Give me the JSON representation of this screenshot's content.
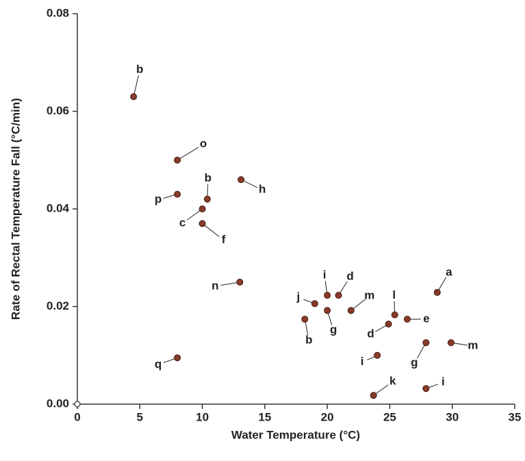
{
  "chart_data": {
    "type": "scatter",
    "xlabel": "Water Temperature (°C)",
    "ylabel": "Rate of Rectal Temperature Fall (°C/min)",
    "series": [
      {
        "color": "#8b3a2a",
        "x": [
          4.5,
          8.0,
          8.0,
          10.4,
          10.0,
          10.0,
          13.1,
          13.0,
          8.0,
          18.2,
          19.0,
          20.0,
          20.9,
          20.0,
          21.9,
          24.0,
          23.7,
          24.9,
          25.4,
          26.4,
          28.8,
          27.9,
          29.9,
          27.9
        ],
        "values": [
          0.063,
          0.05,
          0.043,
          0.042,
          0.04,
          0.037,
          0.046,
          0.025,
          0.0095,
          0.0174,
          0.0206,
          0.0223,
          0.0223,
          0.0192,
          0.0192,
          0.01,
          0.0018,
          0.0164,
          0.0183,
          0.0174,
          0.0229,
          0.0126,
          0.0126,
          0.0032
        ],
        "labels": [
          "b",
          "o",
          "p",
          "b",
          "c",
          "f",
          "h",
          "n",
          "q",
          "b",
          "j",
          "i",
          "d",
          "g",
          "m",
          "i",
          "k",
          "d",
          "l",
          "e",
          "a",
          "g",
          "m",
          "i"
        ]
      }
    ],
    "xlim": [
      0,
      35
    ],
    "xticks": [
      0,
      5,
      10,
      15,
      20,
      25,
      30,
      35
    ],
    "ylim": [
      0,
      0.08
    ],
    "yticks": [
      {
        "value": 0,
        "label": "0.00"
      },
      {
        "value": 0.02,
        "label": "0.02"
      },
      {
        "value": 0.04,
        "label": "0.04"
      },
      {
        "value": 0.06,
        "label": "0.06"
      },
      {
        "value": 0.08,
        "label": "0.08"
      }
    ]
  }
}
